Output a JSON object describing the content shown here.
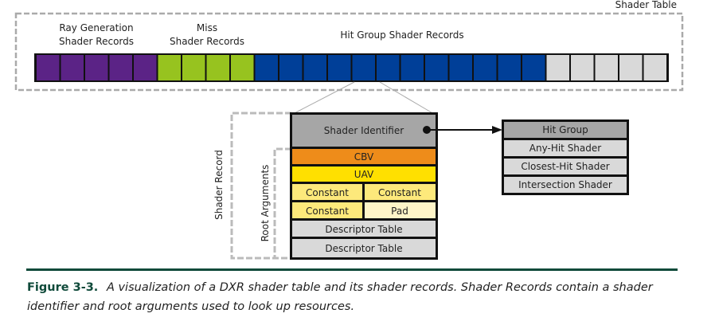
{
  "shader_table": {
    "label": "Shader Table",
    "groups": [
      {
        "line1": "Ray Generation",
        "line2": "Shader Records",
        "count": 5,
        "color": "#5b2386"
      },
      {
        "line1": "Miss",
        "line2": "Shader Records",
        "count": 4,
        "color": "#97c31f"
      },
      {
        "line1": "Hit Group Shader Records",
        "line2": "",
        "count": 12,
        "color": "#003f98"
      },
      {
        "line1": "",
        "line2": "",
        "count": 5,
        "color": "#d9d9d9"
      }
    ]
  },
  "shader_record": {
    "label": "Shader Record",
    "root_arguments_label": "Root Arguments",
    "shader_identifier": "Shader Identifier",
    "cbv": "CBV",
    "uav": "UAV",
    "constant_1": "Constant",
    "constant_2": "Constant",
    "constant_3": "Constant",
    "pad": "Pad",
    "descriptor_table_1": "Descriptor Table",
    "descriptor_table_2": "Descriptor Table",
    "colors": {
      "identifier": "#a6a6a6",
      "cbv": "#ee8c1a",
      "uav": "#ffe000",
      "constant": "#fde97b",
      "pad": "#fff5c8",
      "descriptor": "#d9d9d9"
    }
  },
  "hit_group": {
    "title": "Hit Group",
    "items": [
      "Any-Hit Shader",
      "Closest-Hit Shader",
      "Intersection Shader"
    ]
  },
  "caption": {
    "figure": "Figure 3-3.",
    "text": "A visualization of a DXR shader table and its shader records. Shader Records contain a shader identifier and root arguments used to look up resources."
  }
}
